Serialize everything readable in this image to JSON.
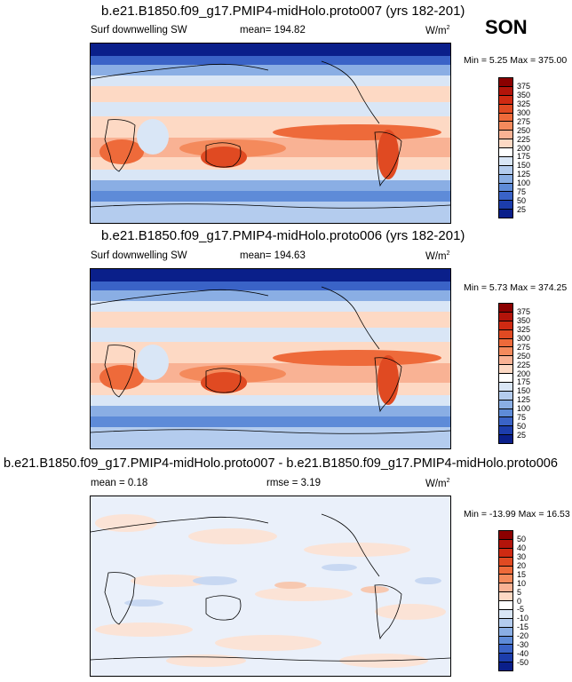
{
  "season": "SON",
  "panels": [
    {
      "title": "b.e21.B1850.f09_g17.PMIP4-midHolo.proto007 (yrs 182-201)",
      "left_label": "Surf downwelling SW",
      "center_label": "mean= 194.82",
      "units": "W/m",
      "units_sup": "2",
      "minmax": "Min =   5.25 Max = 375.00",
      "colorbar": [
        "375",
        "350",
        "325",
        "300",
        "275",
        "250",
        "225",
        "200",
        "175",
        "150",
        "125",
        "100",
        "75",
        "50",
        "25"
      ]
    },
    {
      "title": "b.e21.B1850.f09_g17.PMIP4-midHolo.proto006 (yrs 182-201)",
      "left_label": "Surf downwelling SW",
      "center_label": "mean= 194.63",
      "units": "W/m",
      "units_sup": "2",
      "minmax": "Min =   5.73 Max = 374.25",
      "colorbar": [
        "375",
        "350",
        "325",
        "300",
        "275",
        "250",
        "225",
        "200",
        "175",
        "150",
        "125",
        "100",
        "75",
        "50",
        "25"
      ]
    },
    {
      "title": "b.e21.B1850.f09_g17.PMIP4-midHolo.proto007 - b.e21.B1850.f09_g17.PMIP4-midHolo.proto006",
      "left_label": "mean =   0.18",
      "center_label": "rmse =   3.19",
      "units": "W/m",
      "units_sup": "2",
      "minmax": "Min = -13.99 Max =  16.53",
      "colorbar": [
        "50",
        "40",
        "30",
        "20",
        "15",
        "10",
        "5",
        "0",
        "-5",
        "-10",
        "-15",
        "-20",
        "-30",
        "-40",
        "-50"
      ]
    }
  ],
  "palette_colors": [
    "#8b0000",
    "#b3140a",
    "#cf2a12",
    "#e04a22",
    "#ee6a3a",
    "#f48a5c",
    "#f9b294",
    "#fdd9c4",
    "#ffffff",
    "#d9e6f6",
    "#b4ccee",
    "#8aaee4",
    "#5e8bd8",
    "#3a63c7",
    "#1c3dac",
    "#0a1f8a",
    "#000070"
  ]
}
